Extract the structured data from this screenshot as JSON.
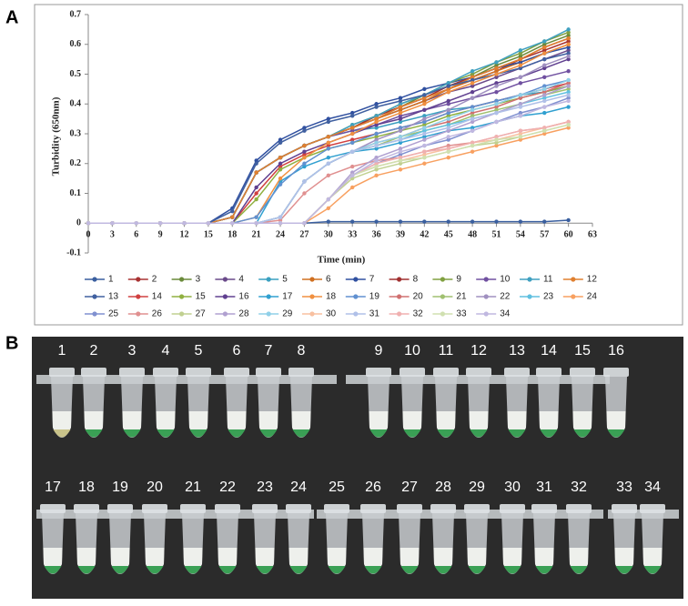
{
  "panel_a_label": "A",
  "panel_b_label": "B",
  "chart_data": {
    "type": "line",
    "x_label": "Time (min)",
    "y_label": "Turbidity (650nm)",
    "x": [
      0,
      3,
      6,
      9,
      12,
      15,
      18,
      21,
      24,
      27,
      30,
      33,
      36,
      39,
      42,
      45,
      48,
      51,
      54,
      57,
      60
    ],
    "xlim": [
      0,
      63
    ],
    "xticks": [
      0,
      3,
      6,
      9,
      12,
      15,
      18,
      21,
      24,
      27,
      30,
      33,
      36,
      39,
      42,
      45,
      48,
      51,
      54,
      57,
      60,
      63
    ],
    "ylim": [
      -0.1,
      0.7
    ],
    "yticks": [
      -0.1,
      0,
      0.1,
      0.2,
      0.3,
      0.4,
      0.5,
      0.6,
      0.7
    ],
    "grid": false,
    "legend": "bottom",
    "series": [
      {
        "name": "1",
        "color": "#3a5f9f",
        "values": [
          0,
          0,
          0,
          0,
          0,
          0,
          0,
          0,
          0,
          0,
          0.005,
          0.005,
          0.005,
          0.005,
          0.005,
          0.005,
          0.005,
          0.005,
          0.005,
          0.005,
          0.01
        ]
      },
      {
        "name": "2",
        "color": "#a83232",
        "values": [
          0,
          0,
          0,
          0,
          0,
          0,
          0.02,
          0.17,
          0.22,
          0.26,
          0.29,
          0.32,
          0.35,
          0.39,
          0.42,
          0.45,
          0.48,
          0.51,
          0.55,
          0.58,
          0.61
        ]
      },
      {
        "name": "3",
        "color": "#6a8a3a",
        "values": [
          0,
          0,
          0,
          0,
          0,
          0,
          0.02,
          0.17,
          0.22,
          0.26,
          0.29,
          0.32,
          0.36,
          0.39,
          0.43,
          0.46,
          0.49,
          0.53,
          0.56,
          0.6,
          0.63
        ]
      },
      {
        "name": "4",
        "color": "#6a4a8a",
        "values": [
          0,
          0,
          0,
          0,
          0,
          0,
          0.02,
          0.17,
          0.22,
          0.26,
          0.29,
          0.32,
          0.35,
          0.38,
          0.41,
          0.44,
          0.46,
          0.49,
          0.52,
          0.55,
          0.58
        ]
      },
      {
        "name": "5",
        "color": "#3aa0c0",
        "values": [
          0,
          0,
          0,
          0,
          0,
          0,
          0.02,
          0.17,
          0.22,
          0.26,
          0.29,
          0.31,
          0.32,
          0.34,
          0.36,
          0.38,
          0.39,
          0.41,
          0.43,
          0.44,
          0.46
        ]
      },
      {
        "name": "6",
        "color": "#d07020",
        "values": [
          0,
          0,
          0,
          0,
          0,
          0,
          0.02,
          0.17,
          0.22,
          0.26,
          0.29,
          0.32,
          0.35,
          0.38,
          0.41,
          0.45,
          0.48,
          0.51,
          0.54,
          0.57,
          0.6
        ]
      },
      {
        "name": "7",
        "color": "#3050a0",
        "values": [
          0,
          0,
          0,
          0,
          0,
          0,
          0.05,
          0.21,
          0.28,
          0.32,
          0.35,
          0.37,
          0.4,
          0.42,
          0.45,
          0.47,
          0.49,
          0.52,
          0.54,
          0.57,
          0.59
        ]
      },
      {
        "name": "8",
        "color": "#a03030",
        "values": [
          0,
          0,
          0,
          0,
          0,
          0,
          0.02,
          0.17,
          0.22,
          0.26,
          0.29,
          0.32,
          0.36,
          0.39,
          0.42,
          0.46,
          0.49,
          0.52,
          0.55,
          0.59,
          0.62
        ]
      },
      {
        "name": "9",
        "color": "#80a040",
        "values": [
          0,
          0,
          0,
          0,
          0,
          0,
          0.02,
          0.17,
          0.22,
          0.26,
          0.29,
          0.33,
          0.36,
          0.4,
          0.43,
          0.47,
          0.5,
          0.54,
          0.57,
          0.61,
          0.64
        ]
      },
      {
        "name": "10",
        "color": "#7050a0",
        "values": [
          0,
          0,
          0,
          0,
          0,
          0,
          0.02,
          0.17,
          0.22,
          0.26,
          0.29,
          0.31,
          0.33,
          0.36,
          0.38,
          0.4,
          0.42,
          0.44,
          0.47,
          0.49,
          0.51
        ]
      },
      {
        "name": "11",
        "color": "#40a0c0",
        "values": [
          0,
          0,
          0,
          0,
          0,
          0,
          0.02,
          0.17,
          0.22,
          0.26,
          0.29,
          0.33,
          0.36,
          0.4,
          0.43,
          0.47,
          0.51,
          0.54,
          0.58,
          0.61,
          0.65
        ]
      },
      {
        "name": "12",
        "color": "#e08030",
        "values": [
          0,
          0,
          0,
          0,
          0,
          0,
          0.02,
          0.17,
          0.22,
          0.26,
          0.29,
          0.32,
          0.35,
          0.39,
          0.42,
          0.45,
          0.49,
          0.52,
          0.55,
          0.59,
          0.62
        ]
      },
      {
        "name": "13",
        "color": "#4060a0",
        "values": [
          0,
          0,
          0,
          0,
          0,
          0,
          0.04,
          0.2,
          0.27,
          0.31,
          0.34,
          0.36,
          0.39,
          0.41,
          0.43,
          0.46,
          0.48,
          0.5,
          0.52,
          0.55,
          0.57
        ]
      },
      {
        "name": "14",
        "color": "#d04040",
        "values": [
          0,
          0,
          0,
          0,
          0,
          0,
          0,
          0.1,
          0.19,
          0.23,
          0.26,
          0.28,
          0.3,
          0.32,
          0.34,
          0.37,
          0.39,
          0.41,
          0.43,
          0.45,
          0.47
        ]
      },
      {
        "name": "15",
        "color": "#90b040",
        "values": [
          0,
          0,
          0,
          0,
          0,
          0,
          0,
          0.08,
          0.18,
          0.22,
          0.25,
          0.27,
          0.29,
          0.31,
          0.33,
          0.36,
          0.38,
          0.4,
          0.42,
          0.44,
          0.46
        ]
      },
      {
        "name": "16",
        "color": "#604090",
        "values": [
          0,
          0,
          0,
          0,
          0,
          0,
          0,
          0.12,
          0.2,
          0.24,
          0.27,
          0.3,
          0.33,
          0.35,
          0.38,
          0.41,
          0.44,
          0.47,
          0.49,
          0.52,
          0.55
        ]
      },
      {
        "name": "17",
        "color": "#30a0d0",
        "values": [
          0,
          0,
          0,
          0,
          0,
          0,
          0,
          0,
          0.14,
          0.19,
          0.22,
          0.24,
          0.25,
          0.27,
          0.29,
          0.31,
          0.32,
          0.34,
          0.36,
          0.37,
          0.39
        ]
      },
      {
        "name": "18",
        "color": "#f09040",
        "values": [
          0,
          0,
          0,
          0,
          0,
          0,
          0,
          0.02,
          0.15,
          0.22,
          0.27,
          0.3,
          0.34,
          0.37,
          0.4,
          0.44,
          0.47,
          0.5,
          0.53,
          0.57,
          0.6
        ]
      },
      {
        "name": "19",
        "color": "#6090d0",
        "values": [
          0,
          0,
          0,
          0,
          0,
          0,
          0,
          0.02,
          0.13,
          0.2,
          0.25,
          0.27,
          0.3,
          0.32,
          0.34,
          0.37,
          0.39,
          0.41,
          0.43,
          0.46,
          0.48
        ]
      },
      {
        "name": "20",
        "color": "#d07070",
        "values": [
          0,
          0,
          0,
          0,
          0,
          0,
          0,
          0,
          0.02,
          0.14,
          0.2,
          0.24,
          0.27,
          0.29,
          0.32,
          0.34,
          0.37,
          0.39,
          0.42,
          0.44,
          0.47
        ]
      },
      {
        "name": "21",
        "color": "#a0c070",
        "values": [
          0,
          0,
          0,
          0,
          0,
          0,
          0,
          0,
          0.02,
          0.14,
          0.2,
          0.24,
          0.26,
          0.29,
          0.31,
          0.33,
          0.36,
          0.38,
          0.4,
          0.43,
          0.45
        ]
      },
      {
        "name": "22",
        "color": "#a090c0",
        "values": [
          0,
          0,
          0,
          0,
          0,
          0,
          0,
          0,
          0.02,
          0.14,
          0.2,
          0.24,
          0.28,
          0.31,
          0.35,
          0.38,
          0.42,
          0.46,
          0.49,
          0.53,
          0.56
        ]
      },
      {
        "name": "23",
        "color": "#60c0e0",
        "values": [
          0,
          0,
          0,
          0,
          0,
          0,
          0,
          0,
          0.02,
          0.14,
          0.2,
          0.24,
          0.26,
          0.28,
          0.31,
          0.33,
          0.35,
          0.37,
          0.4,
          0.42,
          0.44
        ]
      },
      {
        "name": "24",
        "color": "#f8a060",
        "values": [
          0,
          0,
          0,
          0,
          0,
          0,
          0,
          0,
          0,
          0,
          0.05,
          0.12,
          0.16,
          0.18,
          0.2,
          0.22,
          0.24,
          0.26,
          0.28,
          0.3,
          0.32
        ]
      },
      {
        "name": "25",
        "color": "#8090d0",
        "values": [
          0,
          0,
          0,
          0,
          0,
          0,
          0,
          0,
          0,
          0,
          0.08,
          0.16,
          0.2,
          0.23,
          0.26,
          0.28,
          0.31,
          0.34,
          0.37,
          0.39,
          0.42
        ]
      },
      {
        "name": "26",
        "color": "#e09090",
        "values": [
          0,
          0,
          0,
          0,
          0,
          0,
          0,
          0,
          0.01,
          0.1,
          0.16,
          0.19,
          0.21,
          0.22,
          0.24,
          0.26,
          0.27,
          0.29,
          0.31,
          0.32,
          0.34
        ]
      },
      {
        "name": "27",
        "color": "#c0d090",
        "values": [
          0,
          0,
          0,
          0,
          0,
          0,
          0,
          0,
          0,
          0,
          0.08,
          0.15,
          0.18,
          0.2,
          0.22,
          0.24,
          0.26,
          0.27,
          0.29,
          0.31,
          0.33
        ]
      },
      {
        "name": "28",
        "color": "#b0a0d0",
        "values": [
          0,
          0,
          0,
          0,
          0,
          0,
          0,
          0,
          0,
          0,
          0.08,
          0.17,
          0.22,
          0.25,
          0.28,
          0.31,
          0.34,
          0.37,
          0.4,
          0.43,
          0.46
        ]
      },
      {
        "name": "29",
        "color": "#90d0e8",
        "values": [
          0,
          0,
          0,
          0,
          0,
          0,
          0,
          0,
          0.02,
          0.14,
          0.2,
          0.24,
          0.27,
          0.29,
          0.32,
          0.35,
          0.38,
          0.4,
          0.43,
          0.45,
          0.48
        ]
      },
      {
        "name": "30",
        "color": "#f8c0a0",
        "values": [
          0,
          0,
          0,
          0,
          0,
          0,
          0,
          0,
          0,
          0,
          0.08,
          0.16,
          0.19,
          0.21,
          0.23,
          0.25,
          0.27,
          0.28,
          0.3,
          0.32,
          0.34
        ]
      },
      {
        "name": "31",
        "color": "#b0c0e8",
        "values": [
          0,
          0,
          0,
          0,
          0,
          0,
          0,
          0,
          0.02,
          0.14,
          0.2,
          0.24,
          0.26,
          0.28,
          0.3,
          0.32,
          0.35,
          0.37,
          0.39,
          0.41,
          0.43
        ]
      },
      {
        "name": "32",
        "color": "#f0b0b0",
        "values": [
          0,
          0,
          0,
          0,
          0,
          0,
          0,
          0,
          0,
          0,
          0.08,
          0.16,
          0.2,
          0.22,
          0.24,
          0.25,
          0.27,
          0.29,
          0.31,
          0.32,
          0.34
        ]
      },
      {
        "name": "33",
        "color": "#d0e0b0",
        "values": [
          0,
          0,
          0,
          0,
          0,
          0,
          0,
          0,
          0,
          0,
          0.08,
          0.16,
          0.19,
          0.21,
          0.22,
          0.24,
          0.26,
          0.28,
          0.29,
          0.31,
          0.33
        ]
      },
      {
        "name": "34",
        "color": "#c0b8e0",
        "values": [
          0,
          0,
          0,
          0,
          0,
          0,
          0,
          0,
          0,
          0,
          0.08,
          0.16,
          0.21,
          0.24,
          0.26,
          0.29,
          0.31,
          0.34,
          0.36,
          0.39,
          0.41
        ]
      }
    ]
  },
  "photo": {
    "tube_labels": [
      "1",
      "2",
      "3",
      "4",
      "5",
      "6",
      "7",
      "8",
      "9",
      "10",
      "11",
      "12",
      "13",
      "14",
      "15",
      "16",
      "17",
      "18",
      "19",
      "20",
      "21",
      "22",
      "23",
      "24",
      "25",
      "26",
      "27",
      "28",
      "29",
      "30",
      "31",
      "32",
      "33",
      "34"
    ]
  }
}
